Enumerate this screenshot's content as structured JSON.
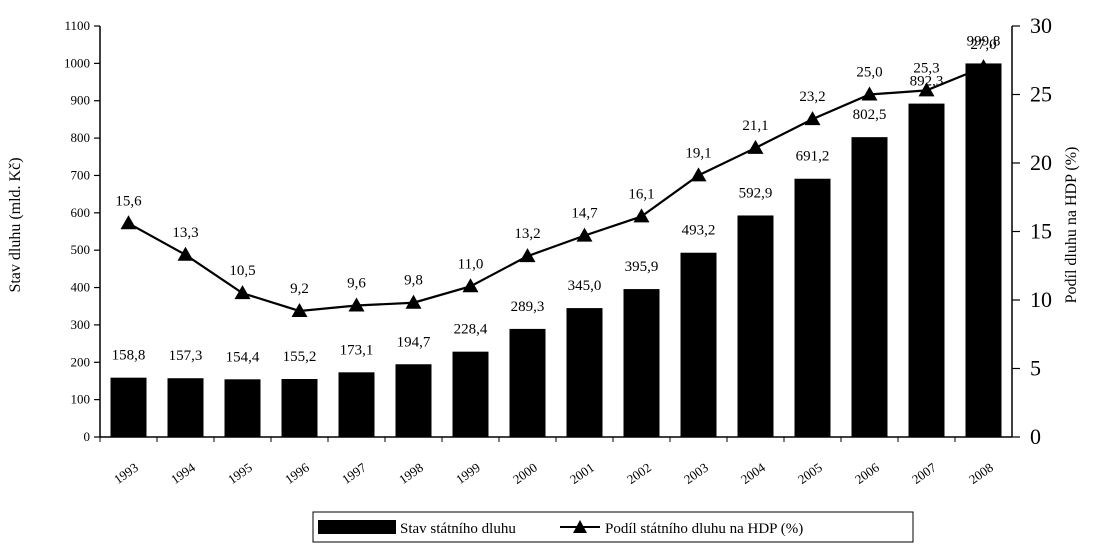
{
  "chart_data": {
    "type": "bar",
    "categories": [
      "1993",
      "1994",
      "1995",
      "1996",
      "1997",
      "1998",
      "1999",
      "2000",
      "2001",
      "2002",
      "2003",
      "2004",
      "2005",
      "2006",
      "2007",
      "2008"
    ],
    "series": [
      {
        "name": "Stav státního dluhu",
        "type": "bar",
        "axis": "left",
        "values": [
          158.8,
          157.3,
          154.4,
          155.2,
          173.1,
          194.7,
          228.4,
          289.3,
          345.0,
          395.9,
          493.2,
          592.9,
          691.2,
          802.5,
          892.3,
          999.8
        ],
        "labels": [
          "158,8",
          "157,3",
          "154,4",
          "155,2",
          "173,1",
          "194,7",
          "228,4",
          "289,3",
          "345,0",
          "395,9",
          "493,2",
          "592,9",
          "691,2",
          "802,5",
          "892,3",
          "999,8"
        ],
        "color": "#000000"
      },
      {
        "name": "Podíl státního dluhu na HDP (%)",
        "type": "line",
        "axis": "right",
        "marker": "triangle",
        "values": [
          15.6,
          13.3,
          10.5,
          9.2,
          9.6,
          9.8,
          11.0,
          13.2,
          14.7,
          16.1,
          19.1,
          21.1,
          23.2,
          25.0,
          25.3,
          27.0
        ],
        "labels": [
          "15,6",
          "13,3",
          "10,5",
          "9,2",
          "9,6",
          "9,8",
          "11,0",
          "13,2",
          "14,7",
          "16,1",
          "19,1",
          "21,1",
          "23,2",
          "25,0",
          "25,3",
          "27,0"
        ],
        "color": "#000000"
      }
    ],
    "ylabel": "Stav dluhu (mld. Kč)",
    "ylabel_right": "Podíl dluhu na HDP (%)",
    "ylim": [
      0,
      1100
    ],
    "ylim_right": [
      0,
      30
    ],
    "yticks": [
      "0",
      "100",
      "200",
      "300",
      "400",
      "500",
      "600",
      "700",
      "800",
      "900",
      "1000",
      "1100"
    ],
    "yticks_right": [
      "0",
      "5",
      "10",
      "15",
      "20",
      "25",
      "30"
    ],
    "legend_position": "bottom",
    "grid": false
  }
}
